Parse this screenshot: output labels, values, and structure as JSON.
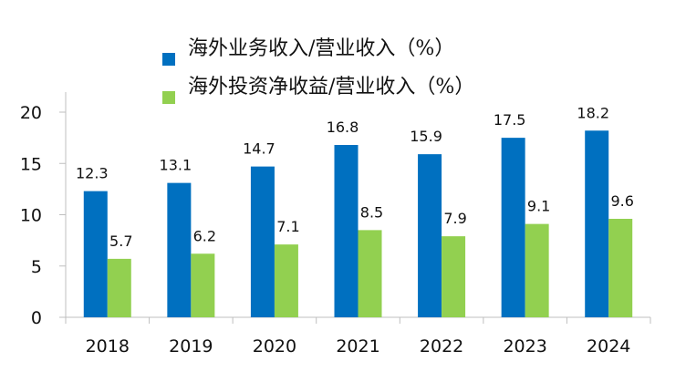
{
  "chart_data": {
    "type": "bar",
    "title": "",
    "xlabel": "",
    "ylabel": "",
    "categories": [
      "2018",
      "2019",
      "2020",
      "2021",
      "2022",
      "2023",
      "2024"
    ],
    "series": [
      {
        "name": "海外业务收入/营业收入（%）",
        "color": "#0070C0",
        "values": [
          12.3,
          13.1,
          14.7,
          16.8,
          15.9,
          17.5,
          18.2
        ]
      },
      {
        "name": "海外投资净收益/营业收入（%）",
        "color": "#92D050",
        "values": [
          5.7,
          6.2,
          7.1,
          8.5,
          7.9,
          9.1,
          9.6
        ]
      }
    ],
    "ylim": [
      0,
      20
    ],
    "yticks": [
      0,
      5,
      10,
      15,
      20
    ],
    "grid": false,
    "legend_position": "top-center",
    "data_labels": true
  }
}
